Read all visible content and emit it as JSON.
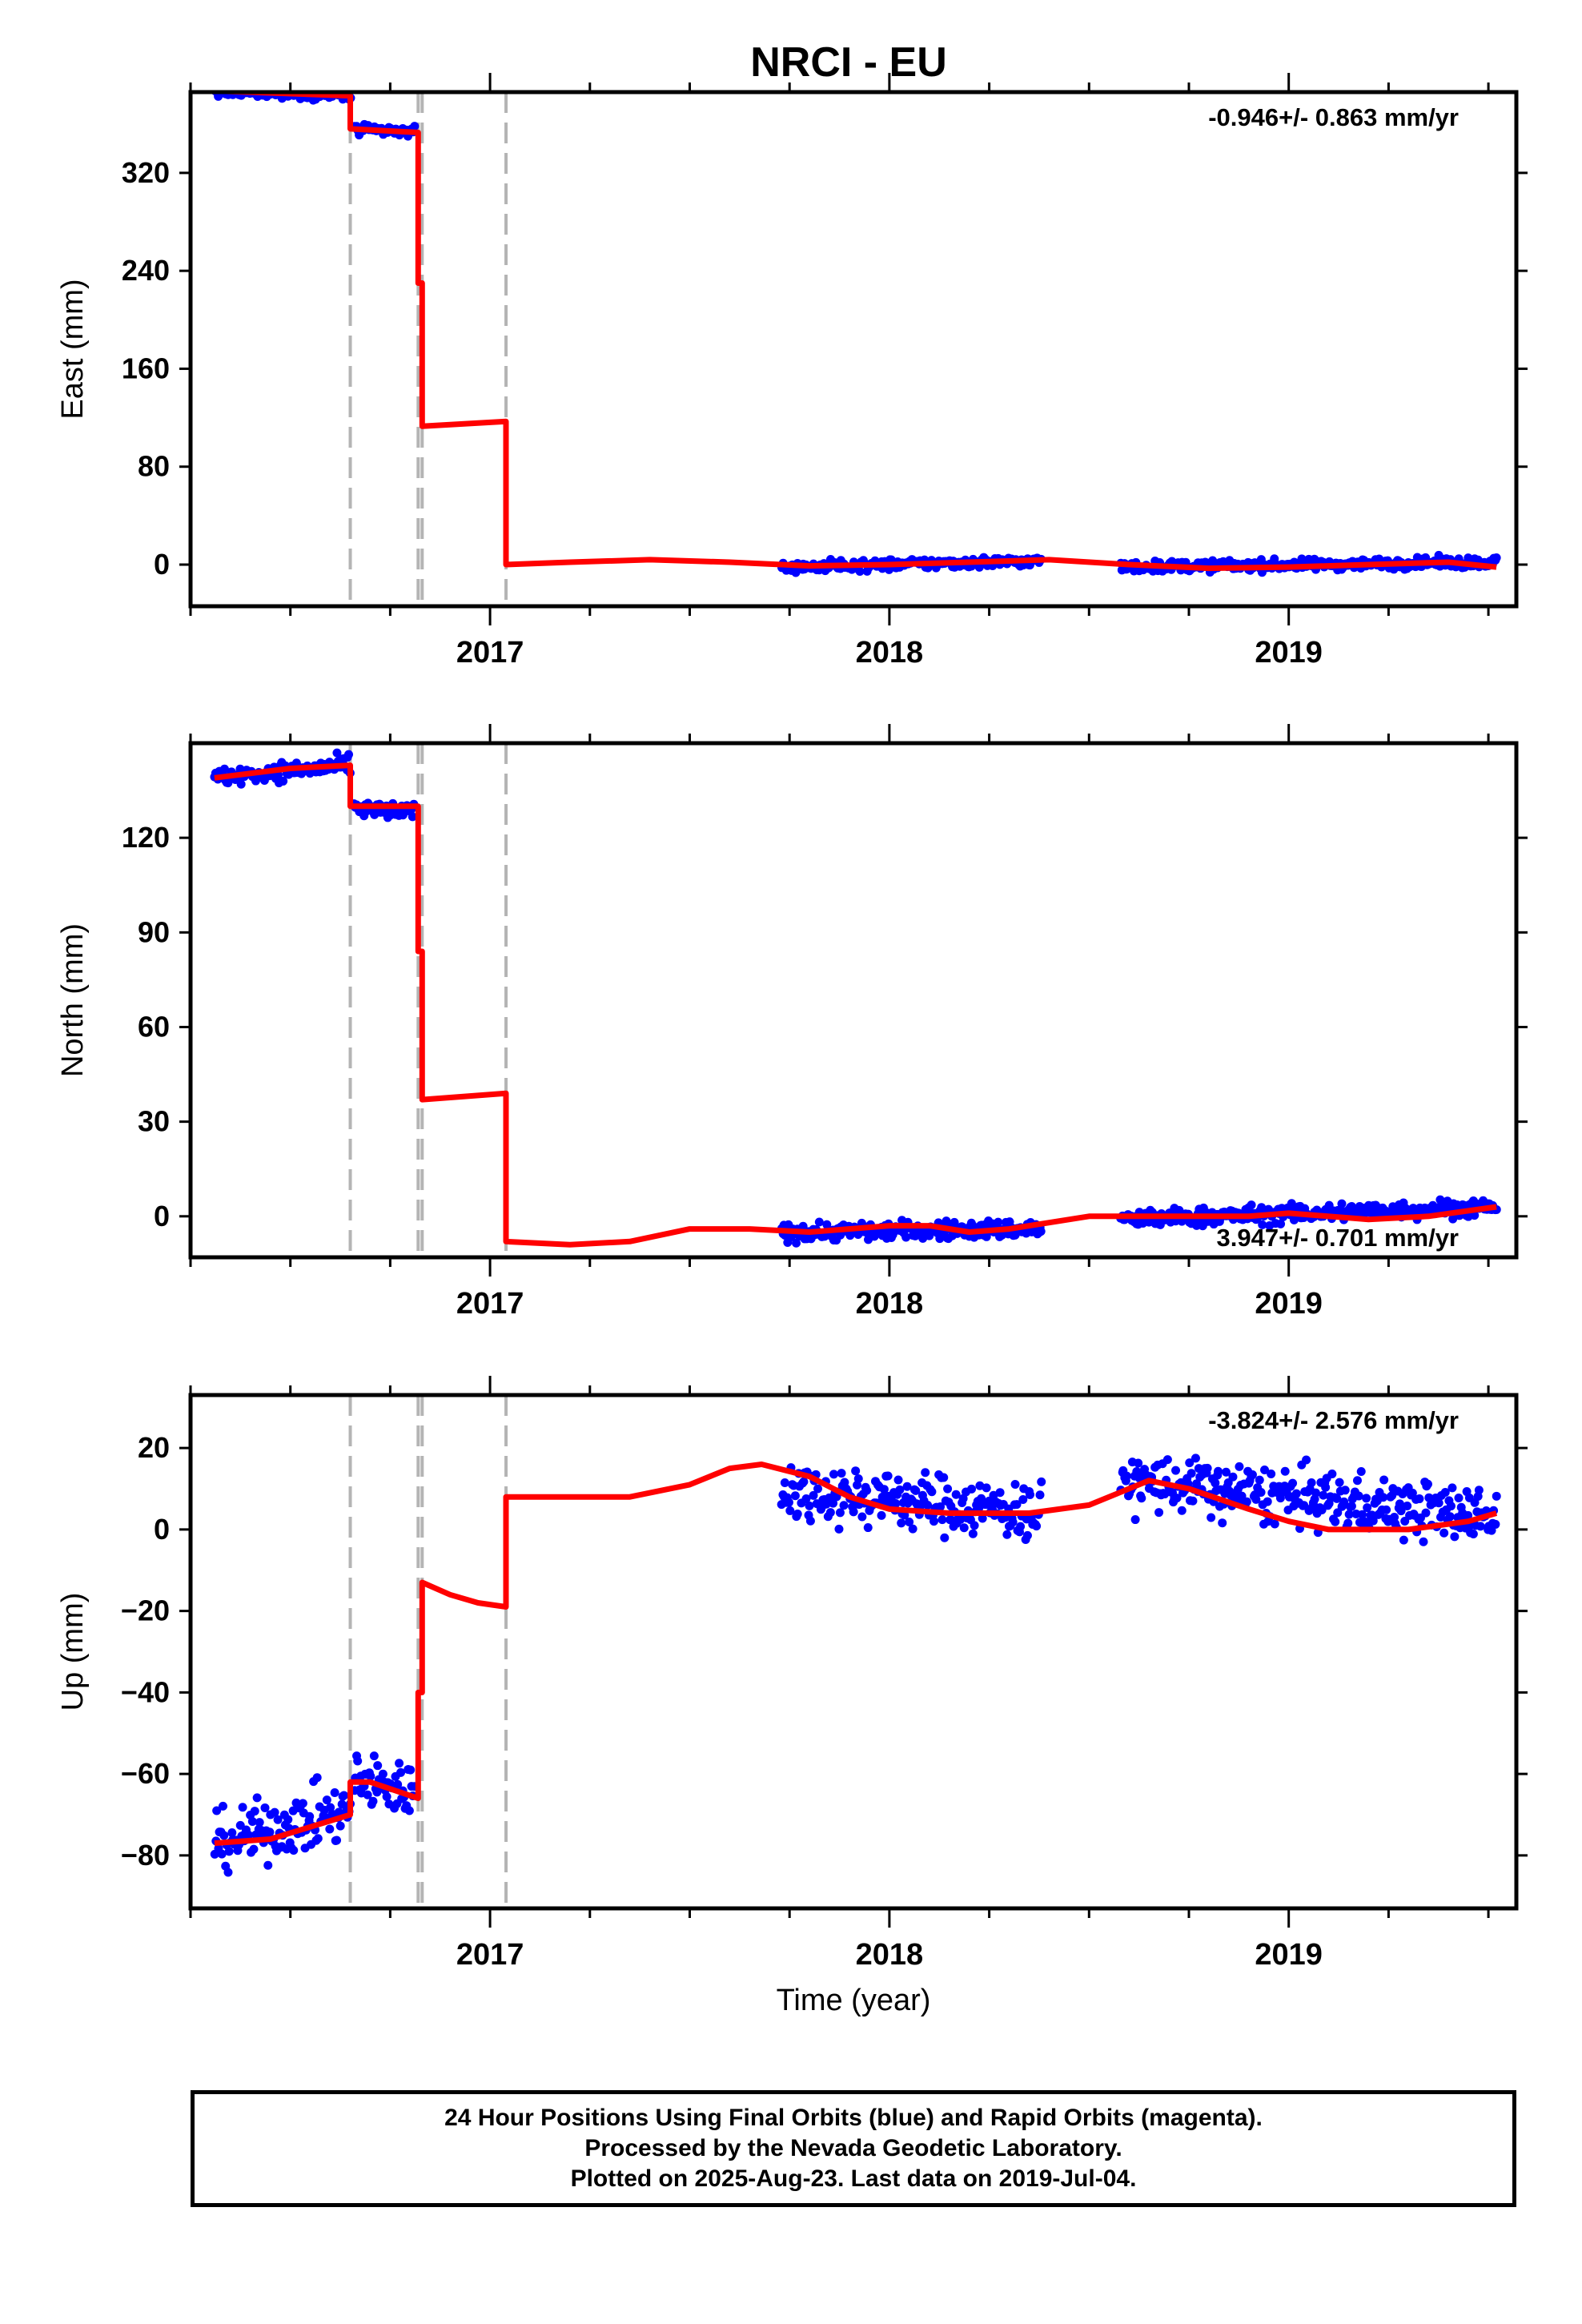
{
  "figure": {
    "title": "NRCI - EU"
  },
  "chart_data": [
    {
      "type": "scatter",
      "ylabel": "East (mm)",
      "xlabel": "",
      "rate_label": "-0.946+/- 0.863 mm/yr",
      "rate_position": "top-right",
      "xlim": [
        2016.25,
        2019.57
      ],
      "ylim": [
        -34,
        386
      ],
      "yticks": [
        0,
        80,
        160,
        240,
        320
      ],
      "xticks": [
        2017,
        2018,
        2019
      ],
      "grid": false,
      "offset_lines": [
        2016.65,
        2016.82,
        2016.83,
        2017.04
      ],
      "series": [
        {
          "role": "observed",
          "marker_color": "#0000ff",
          "segments": [
            {
              "t": [
                2016.31,
                2016.65
              ],
              "y0": 387,
              "y1": 383,
              "noise": 3
            },
            {
              "t": [
                2016.66,
                2016.81
              ],
              "y0": 355,
              "y1": 354,
              "noise": 3
            },
            {
              "t": [
                2017.73,
                2018.38
              ],
              "y0": -2,
              "y1": 3,
              "noise": 3
            },
            {
              "t": [
                2018.58,
                2019.52
              ],
              "y0": -2,
              "y1": 2,
              "noise": 3
            }
          ]
        },
        {
          "role": "model",
          "line_color": "#ff0000",
          "points": [
            [
              2016.31,
              387
            ],
            [
              2016.65,
              383
            ],
            [
              2016.65,
              356
            ],
            [
              2016.82,
              353
            ],
            [
              2016.82,
              230
            ],
            [
              2016.83,
              230
            ],
            [
              2016.83,
              113
            ],
            [
              2017.04,
              117
            ],
            [
              2017.04,
              0
            ],
            [
              2017.2,
              2
            ],
            [
              2017.4,
              4
            ],
            [
              2017.6,
              2
            ],
            [
              2017.8,
              -1
            ],
            [
              2018.0,
              0
            ],
            [
              2018.2,
              2
            ],
            [
              2018.4,
              4
            ],
            [
              2018.6,
              0
            ],
            [
              2018.8,
              -3
            ],
            [
              2019.0,
              -2
            ],
            [
              2019.2,
              0
            ],
            [
              2019.4,
              2
            ],
            [
              2019.52,
              -2
            ]
          ]
        }
      ]
    },
    {
      "type": "scatter",
      "ylabel": "North (mm)",
      "xlabel": "",
      "rate_label": "3.947+/- 0.701 mm/yr",
      "rate_position": "bottom-right",
      "xlim": [
        2016.25,
        2019.57
      ],
      "ylim": [
        -13,
        150
      ],
      "yticks": [
        0,
        30,
        60,
        90,
        120
      ],
      "xticks": [
        2017,
        2018,
        2019
      ],
      "grid": false,
      "offset_lines": [
        2016.65,
        2016.82,
        2016.83,
        2017.04
      ],
      "series": [
        {
          "role": "observed",
          "marker_color": "#0000ff",
          "segments": [
            {
              "t": [
                2016.31,
                2016.65
              ],
              "y0": 139,
              "y1": 143,
              "noise": 2
            },
            {
              "t": [
                2016.66,
                2016.81
              ],
              "y0": 129,
              "y1": 128,
              "noise": 2
            },
            {
              "t": [
                2017.73,
                2018.38
              ],
              "y0": -5,
              "y1": -4,
              "noise": 2
            },
            {
              "t": [
                2018.58,
                2019.52
              ],
              "y0": -1,
              "y1": 3,
              "noise": 2
            }
          ]
        },
        {
          "role": "model",
          "line_color": "#ff0000",
          "points": [
            [
              2016.31,
              139
            ],
            [
              2016.5,
              142
            ],
            [
              2016.65,
              143
            ],
            [
              2016.65,
              130
            ],
            [
              2016.82,
              130
            ],
            [
              2016.82,
              84
            ],
            [
              2016.83,
              84
            ],
            [
              2016.83,
              37
            ],
            [
              2017.04,
              39
            ],
            [
              2017.04,
              -8
            ],
            [
              2017.2,
              -9
            ],
            [
              2017.35,
              -8
            ],
            [
              2017.5,
              -4
            ],
            [
              2017.65,
              -4
            ],
            [
              2017.8,
              -5
            ],
            [
              2018.0,
              -3
            ],
            [
              2018.1,
              -3
            ],
            [
              2018.2,
              -5
            ],
            [
              2018.3,
              -4
            ],
            [
              2018.5,
              0
            ],
            [
              2018.7,
              0
            ],
            [
              2018.9,
              0
            ],
            [
              2019.0,
              1
            ],
            [
              2019.2,
              -1
            ],
            [
              2019.35,
              0
            ],
            [
              2019.52,
              3
            ]
          ]
        }
      ]
    },
    {
      "type": "scatter",
      "ylabel": "Up (mm)",
      "xlabel": "Time (year)",
      "rate_label": "-3.824+/- 2.576 mm/yr",
      "rate_position": "top-right",
      "xlim": [
        2016.25,
        2019.57
      ],
      "ylim": [
        -93,
        33
      ],
      "yticks": [
        -80,
        -60,
        -40,
        -20,
        0,
        20
      ],
      "xticks": [
        2017,
        2018,
        2019
      ],
      "grid": false,
      "offset_lines": [
        2016.65,
        2016.82,
        2016.83,
        2017.04
      ],
      "series": [
        {
          "role": "observed",
          "marker_color": "#0000ff",
          "segments": [
            {
              "t": [
                2016.31,
                2016.65
              ],
              "y0": -77,
              "y1": -69,
              "noise": 5
            },
            {
              "t": [
                2016.66,
                2016.81
              ],
              "y0": -62,
              "y1": -64,
              "noise": 5
            },
            {
              "t": [
                2017.73,
                2018.38
              ],
              "y0": 10,
              "y1": 4,
              "noise": 5
            },
            {
              "t": [
                2018.58,
                2019.52
              ],
              "y0": 12,
              "y1": 3,
              "noise": 5
            }
          ]
        },
        {
          "role": "model",
          "line_color": "#ff0000",
          "points": [
            [
              2016.31,
              -77
            ],
            [
              2016.45,
              -76
            ],
            [
              2016.55,
              -73
            ],
            [
              2016.65,
              -70
            ],
            [
              2016.65,
              -62
            ],
            [
              2016.7,
              -62
            ],
            [
              2016.82,
              -66
            ],
            [
              2016.82,
              -40
            ],
            [
              2016.83,
              -40
            ],
            [
              2016.83,
              -13
            ],
            [
              2016.9,
              -16
            ],
            [
              2016.97,
              -18
            ],
            [
              2017.04,
              -19
            ],
            [
              2017.04,
              8
            ],
            [
              2017.2,
              8
            ],
            [
              2017.35,
              8
            ],
            [
              2017.5,
              11
            ],
            [
              2017.6,
              15
            ],
            [
              2017.68,
              16
            ],
            [
              2017.8,
              13
            ],
            [
              2017.9,
              8
            ],
            [
              2018.0,
              5
            ],
            [
              2018.15,
              4
            ],
            [
              2018.35,
              4
            ],
            [
              2018.5,
              6
            ],
            [
              2018.65,
              12
            ],
            [
              2018.75,
              10
            ],
            [
              2018.9,
              5
            ],
            [
              2019.0,
              2
            ],
            [
              2019.1,
              0
            ],
            [
              2019.3,
              0
            ],
            [
              2019.45,
              2
            ],
            [
              2019.52,
              4
            ]
          ]
        }
      ]
    }
  ],
  "footer": {
    "line1": "24 Hour Positions Using Final Orbits (blue) and Rapid Orbits (magenta).",
    "line2": "Processed by the Nevada Geodetic Laboratory.",
    "line3": "Plotted on 2025-Aug-23. Last data on 2019-Jul-04."
  }
}
